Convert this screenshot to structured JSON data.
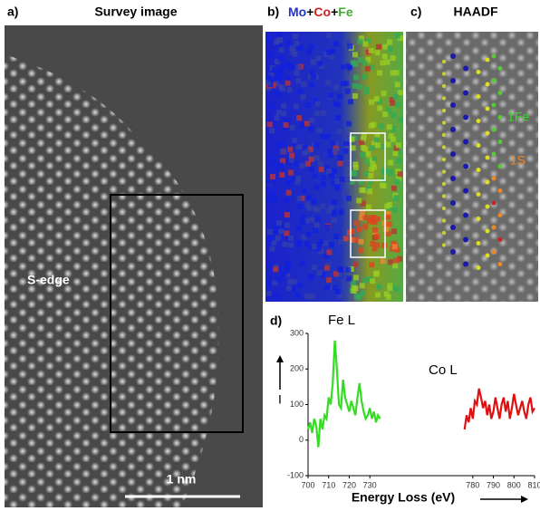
{
  "panels": {
    "a": {
      "label": "a)",
      "title": "Survey image",
      "annotation": "S-edge",
      "scale_bar": "1 nm"
    },
    "b": {
      "label": "b)",
      "title_parts": [
        "Mo",
        "+",
        "Co",
        "+",
        "Fe"
      ]
    },
    "c": {
      "label": "c)",
      "title": "HAADF",
      "annotations": [
        "1Fe",
        "1S"
      ]
    },
    "d": {
      "label": "d)"
    }
  },
  "chart_data": {
    "type": "line",
    "xlabel": "Energy Loss  (eV)",
    "ylabel": "I",
    "xlim": [
      700,
      810
    ],
    "xticks": [
      700,
      710,
      720,
      730,
      780,
      790,
      800,
      810
    ],
    "ylim": [
      -100,
      300
    ],
    "yticks": [
      -100,
      0,
      100,
      200,
      300
    ],
    "series": [
      {
        "name": "Fe L",
        "color": "#33dd22",
        "x": [
          700,
          701,
          702,
          703,
          704,
          705,
          706,
          707,
          708,
          709,
          710,
          711,
          712,
          713,
          714,
          715,
          716,
          717,
          718,
          719,
          720,
          721,
          722,
          723,
          724,
          725,
          726,
          727,
          728,
          729,
          730,
          731,
          732,
          733,
          734,
          735
        ],
        "values": [
          30,
          50,
          20,
          60,
          40,
          -20,
          60,
          30,
          70,
          60,
          120,
          100,
          160,
          280,
          200,
          100,
          90,
          170,
          120,
          100,
          80,
          110,
          90,
          70,
          120,
          160,
          110,
          80,
          60,
          70,
          90,
          60,
          80,
          50,
          70,
          60
        ]
      },
      {
        "name": "Co L",
        "color": "#dd1111",
        "x": [
          776,
          777,
          778,
          779,
          780,
          781,
          782,
          783,
          784,
          785,
          786,
          787,
          788,
          789,
          790,
          791,
          792,
          793,
          794,
          795,
          796,
          797,
          798,
          799,
          800,
          801,
          802,
          803,
          804,
          805,
          806,
          807,
          808,
          809,
          810
        ],
        "values": [
          30,
          70,
          50,
          90,
          60,
          110,
          100,
          145,
          120,
          90,
          110,
          70,
          100,
          60,
          80,
          120,
          90,
          60,
          100,
          120,
          80,
          110,
          60,
          90,
          130,
          100,
          70,
          90,
          110,
          80,
          60,
          100,
          120,
          80,
          90
        ]
      }
    ]
  }
}
